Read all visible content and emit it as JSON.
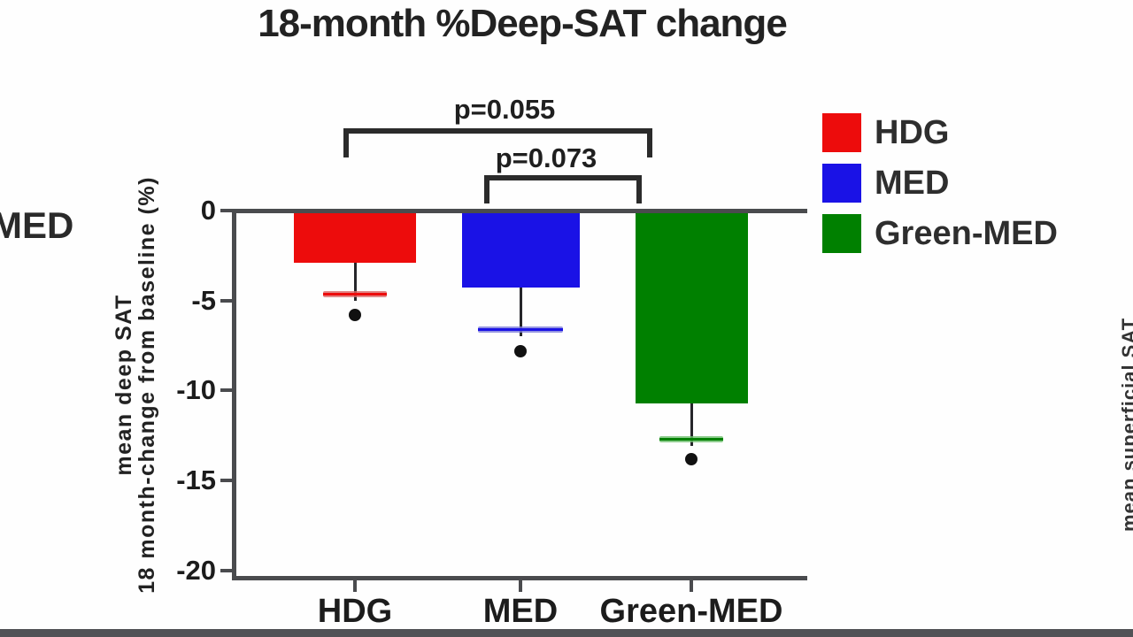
{
  "title": "18-month %Deep-SAT change",
  "left_partial_label": "MED",
  "right_partial_label": "mean superficial SAT",
  "chart_data": {
    "type": "bar",
    "title": "18-month %Deep-SAT change",
    "categories": [
      "HDG",
      "MED",
      "Green-MED"
    ],
    "values": [
      -2.9,
      -4.3,
      -10.7
    ],
    "error_cap_values": [
      -4.6,
      -6.6,
      -12.7
    ],
    "dot_values": [
      -5.8,
      -7.8,
      -13.8
    ],
    "bar_colors": [
      "#ed0c0c",
      "#1a12e6",
      "#008000"
    ],
    "cap_colors": [
      "#d96a6a",
      "#7b7bd9",
      "#6fbf6f"
    ],
    "ylabel_line1": "mean deep SAT",
    "ylabel_line2": "18 month-change from baseline (%)",
    "yticks": [
      0,
      -5,
      -10,
      -15,
      -20
    ],
    "ytick_labels": [
      "0",
      "-5",
      "-10",
      "-15",
      "-20"
    ],
    "ylim": [
      0,
      -20.5
    ],
    "grid": false,
    "legend_position": "upper-right",
    "legend": [
      {
        "label": "HDG",
        "color": "#ed0c0c"
      },
      {
        "label": "MED",
        "color": "#1a12e6"
      },
      {
        "label": "Green-MED",
        "color": "#008000"
      }
    ],
    "annotations": [
      {
        "label": "p=0.055",
        "from": "HDG",
        "to": "Green-MED"
      },
      {
        "label": "p=0.073",
        "from": "MED",
        "to": "Green-MED"
      }
    ]
  }
}
